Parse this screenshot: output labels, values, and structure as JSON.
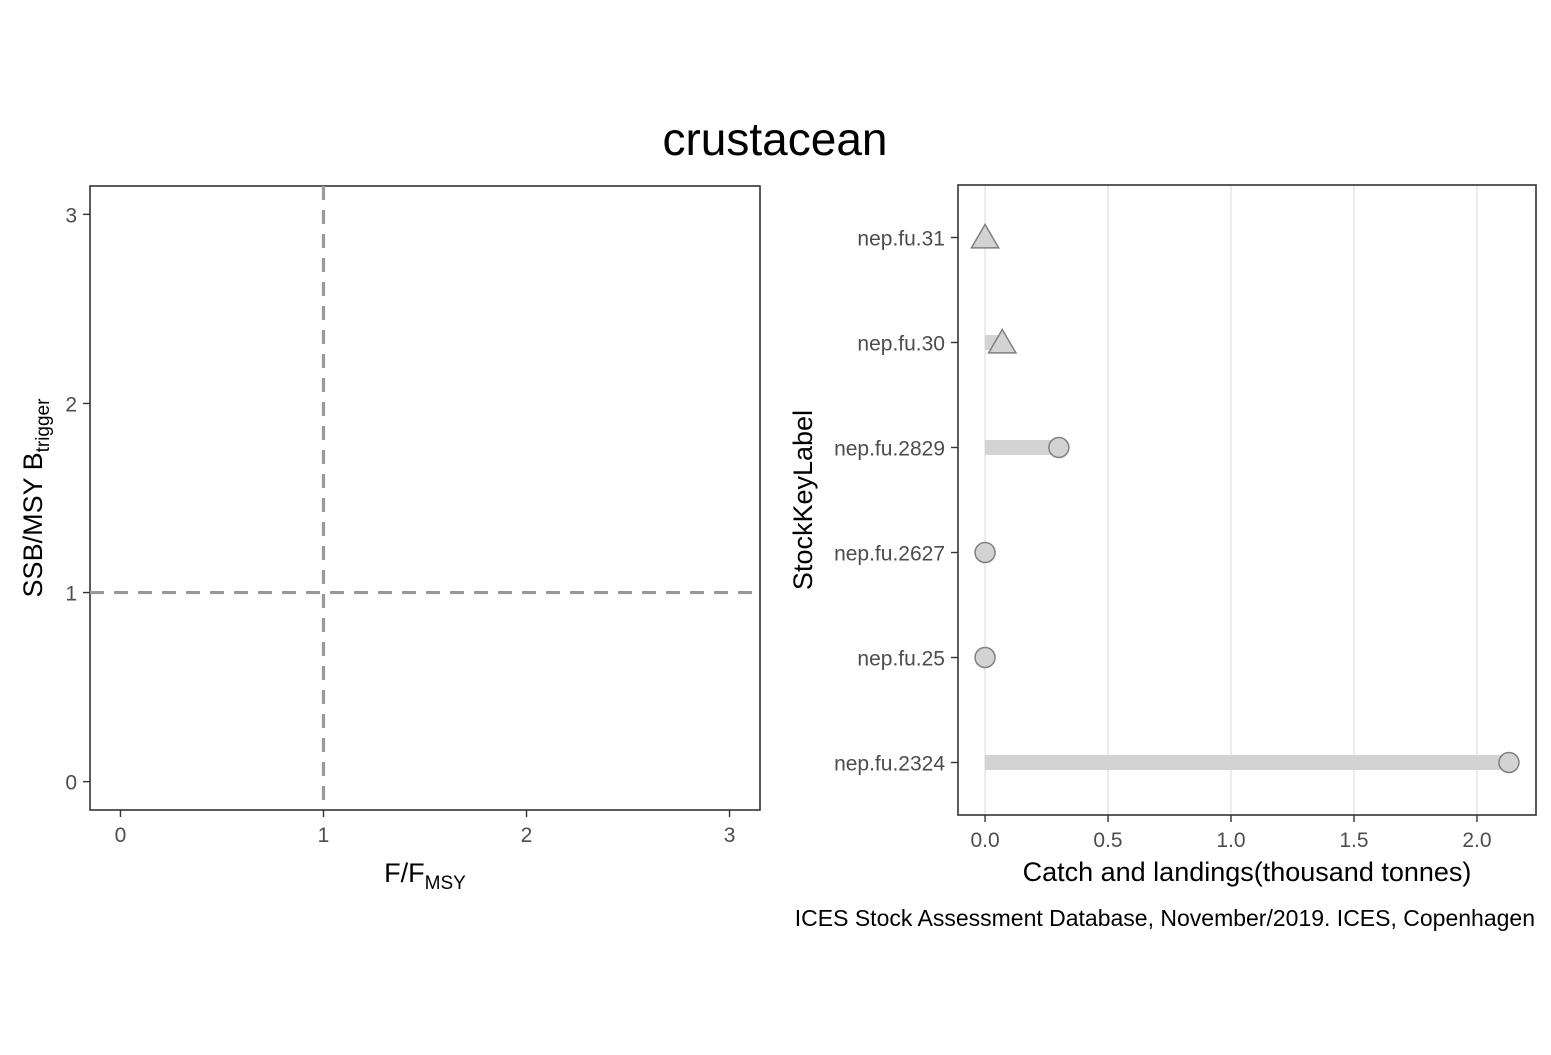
{
  "title": "crustacean",
  "caption": "ICES Stock Assessment Database, November/2019. ICES, Copenhagen",
  "chart_data": [
    {
      "type": "scatter",
      "xlabel": {
        "main": "F/F",
        "sub": "MSY"
      },
      "ylabel": {
        "main": "SSB/MSY B",
        "sub": "trigger"
      },
      "xlim": [
        -0.15,
        3.15
      ],
      "ylim": [
        -0.15,
        3.15
      ],
      "x_ticks": [
        "0",
        "1",
        "2",
        "3"
      ],
      "y_ticks": [
        "0",
        "1",
        "2",
        "3"
      ],
      "reference_lines": {
        "x": 1,
        "y": 1
      },
      "reference_color": "#999999",
      "points": [],
      "grid": false
    },
    {
      "type": "bar",
      "orientation": "horizontal",
      "xlabel": "Catch and landings(thousand tonnes)",
      "ylabel": "StockKeyLabel",
      "xlim": [
        -0.11,
        2.24
      ],
      "x_ticks": [
        "0.0",
        "0.5",
        "1.0",
        "1.5",
        "2.0"
      ],
      "categories": [
        "nep.fu.31",
        "nep.fu.30",
        "nep.fu.2829",
        "nep.fu.2627",
        "nep.fu.25",
        "nep.fu.2324"
      ],
      "values": [
        0.0,
        0.07,
        0.3,
        0.0,
        0.0,
        2.13
      ],
      "markers": [
        "triangle",
        "triangle",
        "circle",
        "circle",
        "circle",
        "circle"
      ],
      "bar_color": "#d3d3d3",
      "marker_fill": "#d3d3d3",
      "marker_stroke": "#808080",
      "grid": "vertical"
    }
  ]
}
